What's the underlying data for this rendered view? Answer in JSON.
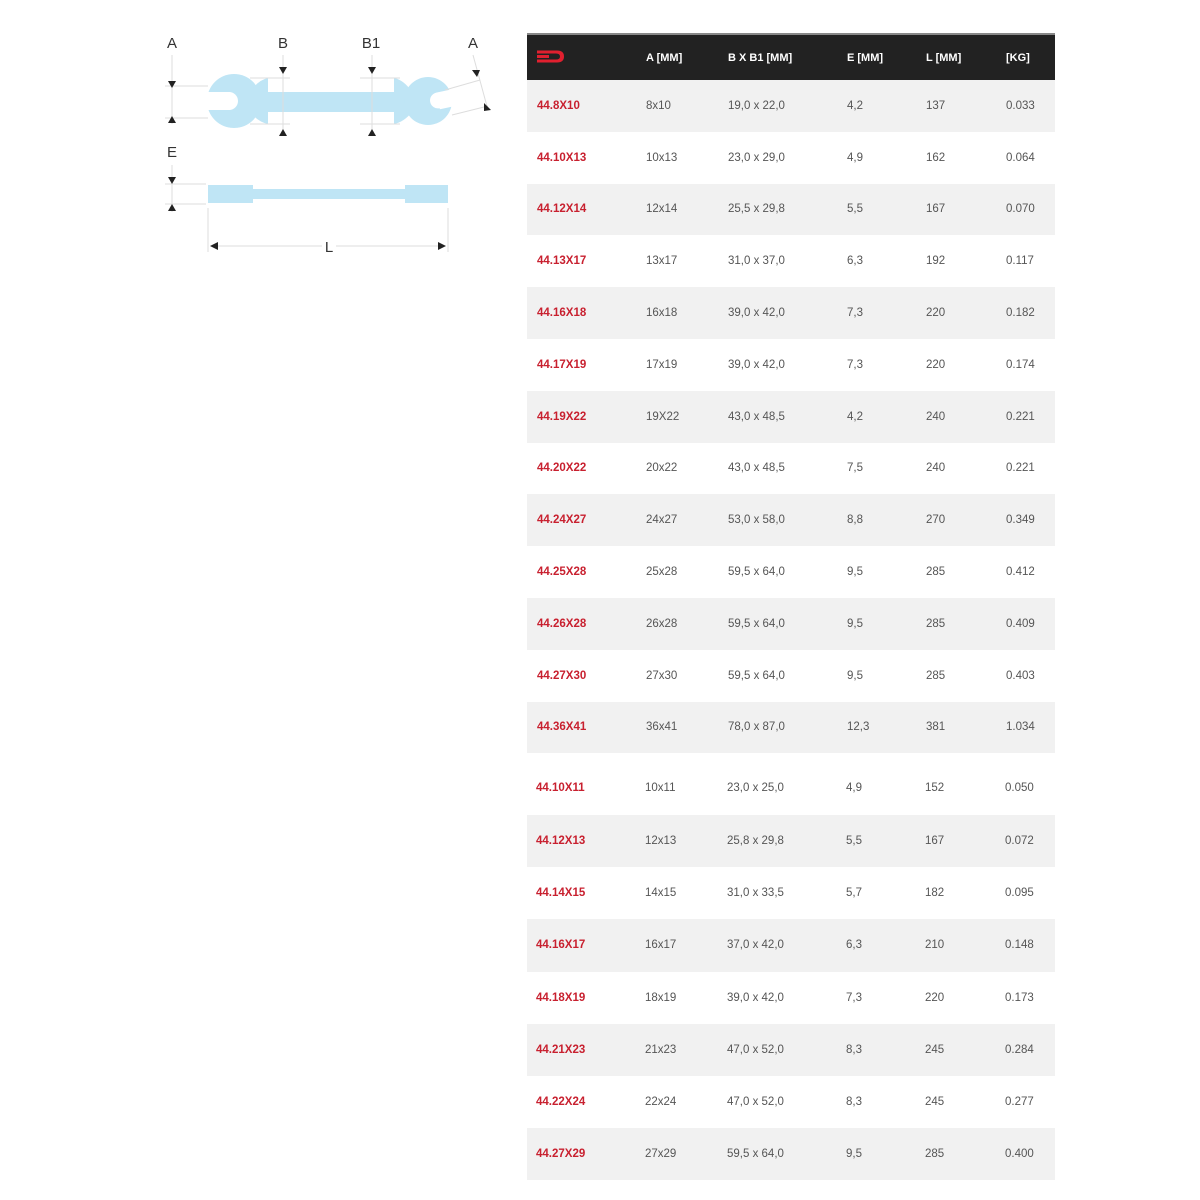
{
  "diagram": {
    "labels": {
      "a_left": "A",
      "b": "B",
      "b1": "B1",
      "a_right": "A",
      "e": "E",
      "l": "L"
    },
    "wrench_color": "#bfe5f5"
  },
  "table": {
    "header_icon": "wrench-logo-icon",
    "accent_color": "#c8202f",
    "header_bg": "#222222",
    "columns": [
      "A [MM]",
      "B X B1 [MM]",
      "E [MM]",
      "L [MM]",
      "[KG]"
    ],
    "rows": [
      [
        "44.8X10",
        "8x10",
        "19,0 x 22,0",
        "4,2",
        "137",
        "0.033"
      ],
      [
        "44.10X13",
        "10x13",
        "23,0 x 29,0",
        "4,9",
        "162",
        "0.064"
      ],
      [
        "44.12X14",
        "12x14",
        "25,5 x 29,8",
        "5,5",
        "167",
        "0.070"
      ],
      [
        "44.13X17",
        "13x17",
        "31,0 x 37,0",
        "6,3",
        "192",
        "0.117"
      ],
      [
        "44.16X18",
        "16x18",
        "39,0 x 42,0",
        "7,3",
        "220",
        "0.182"
      ],
      [
        "44.17X19",
        "17x19",
        "39,0 x 42,0",
        "7,3",
        "220",
        "0.174"
      ],
      [
        "44.19X22",
        "19X22",
        "43,0 x 48,5",
        "4,2",
        "240",
        "0.221"
      ],
      [
        "44.20X22",
        "20x22",
        "43,0 x 48,5",
        "7,5",
        "240",
        "0.221"
      ],
      [
        "44.24X27",
        "24x27",
        "53,0 x 58,0",
        "8,8",
        "270",
        "0.349"
      ],
      [
        "44.25X28",
        "25x28",
        "59,5 x 64,0",
        "9,5",
        "285",
        "0.412"
      ],
      [
        "44.26X28",
        "26x28",
        "59,5 x 64,0",
        "9,5",
        "285",
        "0.409"
      ],
      [
        "44.27X30",
        "27x30",
        "59,5 x 64,0",
        "9,5",
        "285",
        "0.403"
      ],
      [
        "44.36X41",
        "36x41",
        "78,0 x 87,0",
        "12,3",
        "381",
        "1.034"
      ]
    ],
    "rows2": [
      [
        "44.10X11",
        "10x11",
        "23,0 x 25,0",
        "4,9",
        "152",
        "0.050"
      ],
      [
        "44.12X13",
        "12x13",
        "25,8 x 29,8",
        "5,5",
        "167",
        "0.072"
      ],
      [
        "44.14X15",
        "14x15",
        "31,0 x 33,5",
        "5,7",
        "182",
        "0.095"
      ],
      [
        "44.16X17",
        "16x17",
        "37,0 x 42,0",
        "6,3",
        "210",
        "0.148"
      ],
      [
        "44.18X19",
        "18x19",
        "39,0 x 42,0",
        "7,3",
        "220",
        "0.173"
      ],
      [
        "44.21X23",
        "21x23",
        "47,0 x 52,0",
        "8,3",
        "245",
        "0.284"
      ],
      [
        "44.22X24",
        "22x24",
        "47,0 x 52,0",
        "8,3",
        "245",
        "0.277"
      ],
      [
        "44.27X29",
        "27x29",
        "59,5 x 64,0",
        "9,5",
        "285",
        "0.400"
      ]
    ]
  }
}
